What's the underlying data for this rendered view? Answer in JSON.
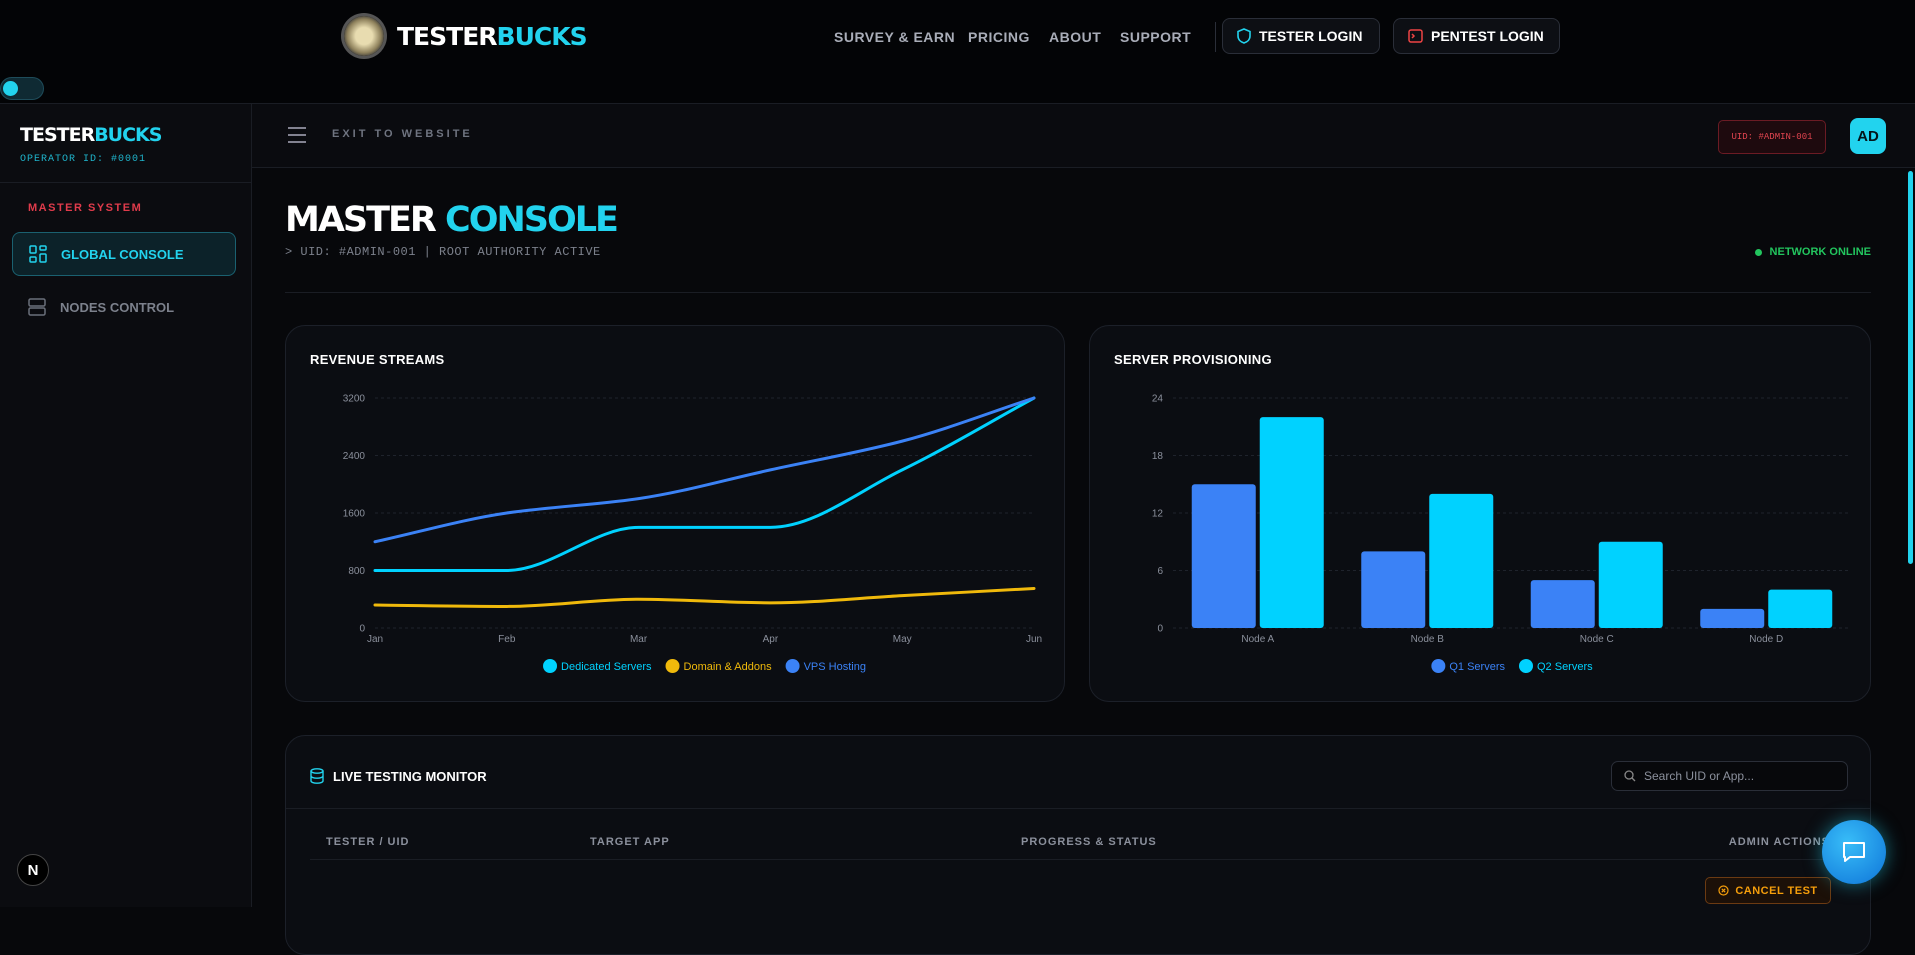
{
  "nav": {
    "brand_a": "TESTER",
    "brand_b": "BUCKS",
    "links": [
      "SURVEY & EARN",
      "PRICING",
      "ABOUT",
      "SUPPORT"
    ],
    "tester_login": "TESTER LOGIN",
    "pentest_login": "PENTEST LOGIN"
  },
  "sidebar": {
    "brand_a": "TESTER",
    "brand_b": "BUCKS",
    "operator": "OPERATOR ID: #0001",
    "section": "MASTER SYSTEM",
    "items": [
      "GLOBAL CONSOLE",
      "NODES CONTROL"
    ],
    "dev_badge": "N"
  },
  "topbar": {
    "exit": "EXIT TO WEBSITE",
    "uid": "UID: #ADMIN-001",
    "avatar": "AD"
  },
  "header": {
    "title_a": "MASTER",
    "title_b": "CONSOLE",
    "subtitle": "> UID: #ADMIN-001 | ROOT AUTHORITY ACTIVE",
    "status": "NETWORK ONLINE"
  },
  "chart_data": [
    {
      "type": "line",
      "title": "REVENUE STREAMS",
      "categories": [
        "Jan",
        "Feb",
        "Mar",
        "Apr",
        "May",
        "Jun"
      ],
      "series": [
        {
          "name": "Dedicated Servers",
          "color": "#00d2ff",
          "values": [
            800,
            800,
            1400,
            1400,
            2200,
            3200
          ]
        },
        {
          "name": "Domain & Addons",
          "color": "#f0b90b",
          "values": [
            320,
            300,
            400,
            350,
            450,
            550
          ]
        },
        {
          "name": "VPS Hosting",
          "color": "#3b82f6",
          "values": [
            1200,
            1600,
            1800,
            2200,
            2600,
            3200
          ]
        }
      ],
      "ylim": [
        0,
        3200
      ],
      "yticks": [
        0,
        800,
        1600,
        2400,
        3200
      ],
      "grid": true,
      "legend": "bottom"
    },
    {
      "type": "bar",
      "title": "SERVER PROVISIONING",
      "categories": [
        "Node A",
        "Node B",
        "Node C",
        "Node D"
      ],
      "series": [
        {
          "name": "Q1 Servers",
          "color": "#3b82f6",
          "values": [
            15,
            8,
            5,
            2
          ]
        },
        {
          "name": "Q2 Servers",
          "color": "#00d2ff",
          "values": [
            22,
            14,
            9,
            4
          ]
        }
      ],
      "ylim": [
        0,
        24
      ],
      "yticks": [
        0,
        6,
        12,
        18,
        24
      ],
      "grid": true,
      "legend": "bottom"
    }
  ],
  "table": {
    "title": "LIVE TESTING MONITOR",
    "search_placeholder": "Search UID or App...",
    "columns": [
      "TESTER / UID",
      "TARGET APP",
      "PROGRESS & STATUS",
      "ADMIN ACTIONS"
    ],
    "row_action": "CANCEL TEST"
  }
}
